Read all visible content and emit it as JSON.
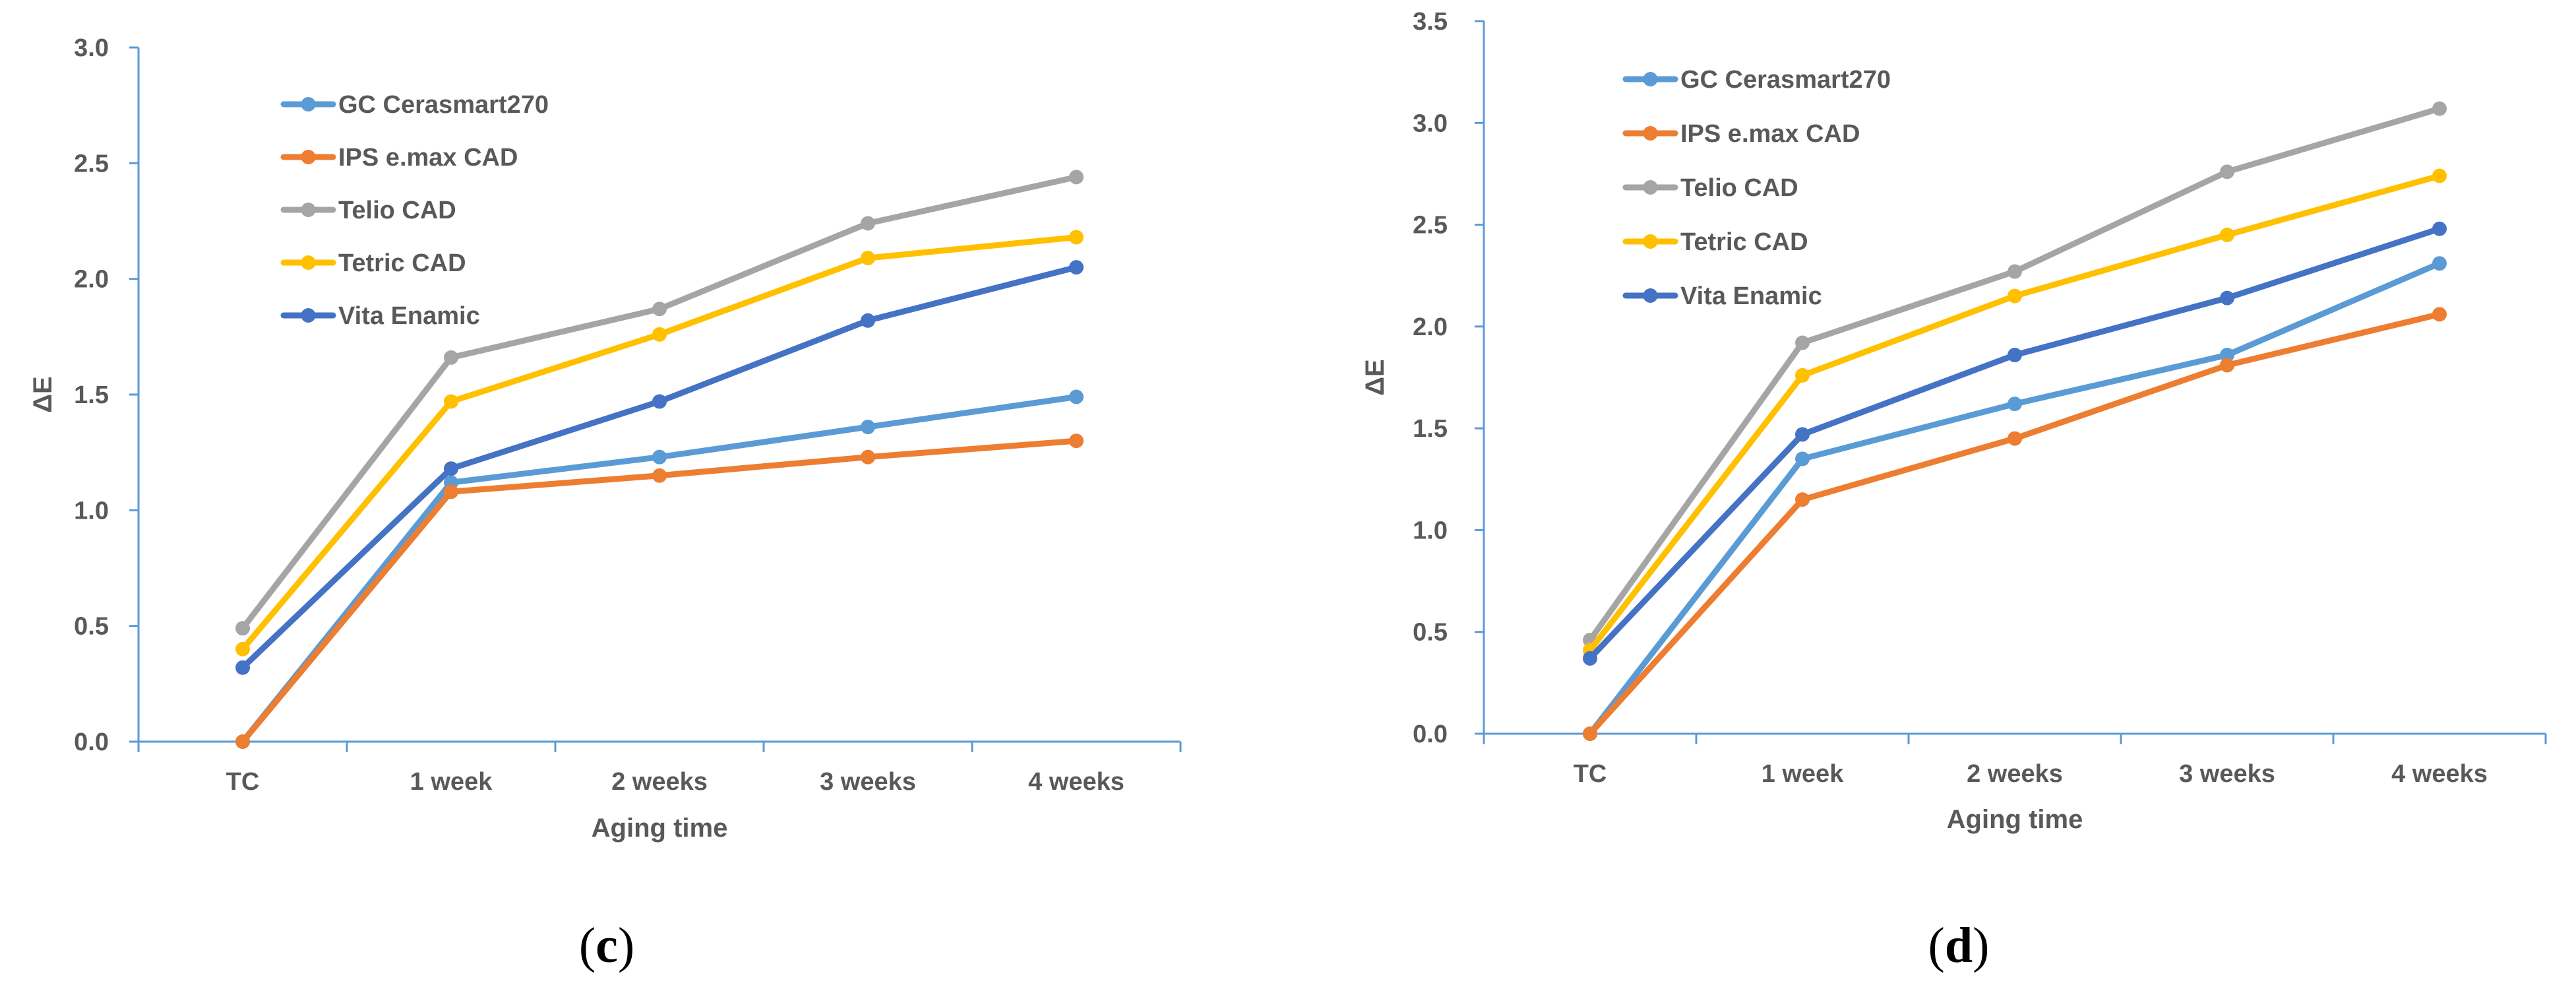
{
  "chart_data": [
    {
      "type": "line",
      "title": "",
      "caption_letter": "c",
      "xlabel": "Aging time",
      "ylabel": "ΔE",
      "categories": [
        "TC",
        "1 week",
        "2 weeks",
        "3 weeks",
        "4 weeks"
      ],
      "ylim": [
        0,
        3.0
      ],
      "yticks": [
        "0.0",
        "0.5",
        "1.0",
        "1.5",
        "2.0",
        "2.5",
        "3.0"
      ],
      "ytick_values": [
        0,
        0.5,
        1.0,
        1.5,
        2.0,
        2.5,
        3.0
      ],
      "legend_position": "top-left",
      "grid": false,
      "series": [
        {
          "name": "GC Cerasmart270",
          "color": "#5B9BD5",
          "values": [
            0.0,
            1.12,
            1.23,
            1.36,
            1.49
          ]
        },
        {
          "name": "IPS e.max CAD",
          "color": "#ED7D31",
          "values": [
            0.0,
            1.08,
            1.15,
            1.23,
            1.3
          ]
        },
        {
          "name": "Telio CAD",
          "color": "#A5A5A5",
          "values": [
            0.49,
            1.66,
            1.87,
            2.24,
            2.44
          ]
        },
        {
          "name": "Tetric CAD",
          "color": "#FFC000",
          "values": [
            0.4,
            1.47,
            1.76,
            2.09,
            2.18
          ]
        },
        {
          "name": "Vita Enamic",
          "color": "#4472C4",
          "values": [
            0.32,
            1.18,
            1.47,
            1.82,
            2.05
          ]
        }
      ]
    },
    {
      "type": "line",
      "title": "",
      "caption_letter": "d",
      "xlabel": "Aging time",
      "ylabel": "ΔE",
      "categories": [
        "TC",
        "1 week",
        "2 weeks",
        "3 weeks",
        "4 weeks"
      ],
      "ylim": [
        0,
        3.5
      ],
      "yticks": [
        "0.0",
        "0.5",
        "1.0",
        "1.5",
        "2.0",
        "2.5",
        "3.0",
        "3.5"
      ],
      "ytick_values": [
        0,
        0.5,
        1.0,
        1.5,
        2.0,
        2.5,
        3.0,
        3.5
      ],
      "legend_position": "top-left",
      "grid": false,
      "series": [
        {
          "name": "GC Cerasmart270",
          "color": "#5B9BD5",
          "values": [
            0.0,
            1.35,
            1.62,
            1.86,
            2.31
          ]
        },
        {
          "name": "IPS e.max CAD",
          "color": "#ED7D31",
          "values": [
            0.0,
            1.15,
            1.45,
            1.81,
            2.06
          ]
        },
        {
          "name": "Telio CAD",
          "color": "#A5A5A5",
          "values": [
            0.46,
            1.92,
            2.27,
            2.76,
            3.07
          ]
        },
        {
          "name": "Tetric CAD",
          "color": "#FFC000",
          "values": [
            0.41,
            1.76,
            2.15,
            2.45,
            2.74
          ]
        },
        {
          "name": "Vita Enamic",
          "color": "#4472C4",
          "values": [
            0.37,
            1.47,
            1.86,
            2.14,
            2.48
          ]
        }
      ]
    }
  ]
}
